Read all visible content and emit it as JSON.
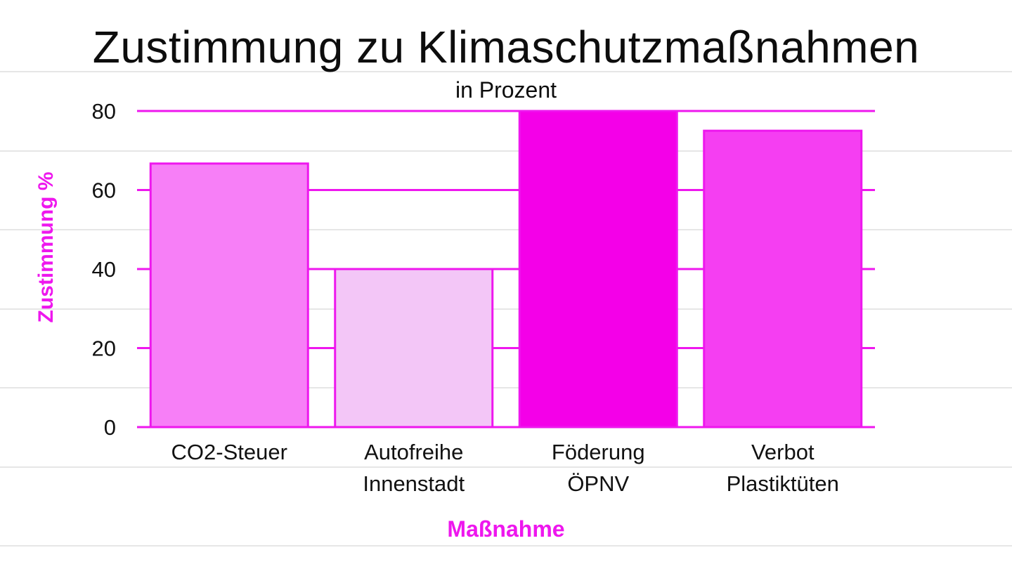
{
  "chart_data": {
    "type": "bar",
    "title": "Zustimmung zu Klimaschutzmaßnahmen",
    "subtitle": "in Prozent",
    "xlabel": "Maßnahme",
    "ylabel": "Zustimmung %",
    "categories": [
      [
        "CO2-Steuer"
      ],
      [
        "Autofreihe",
        "Innenstadt"
      ],
      [
        "Föderung",
        "ÖPNV"
      ],
      [
        "Verbot",
        "Plastiktüten"
      ]
    ],
    "values": [
      66.7,
      40,
      80,
      75
    ],
    "bar_colors": [
      "#f77ff7",
      "#f3c6f7",
      "#f400e8",
      "#f53ef2"
    ],
    "ylim": [
      0,
      80
    ],
    "yticks": [
      0,
      20,
      40,
      60,
      80
    ],
    "grid": true,
    "accent_color": "#ee17ee"
  }
}
